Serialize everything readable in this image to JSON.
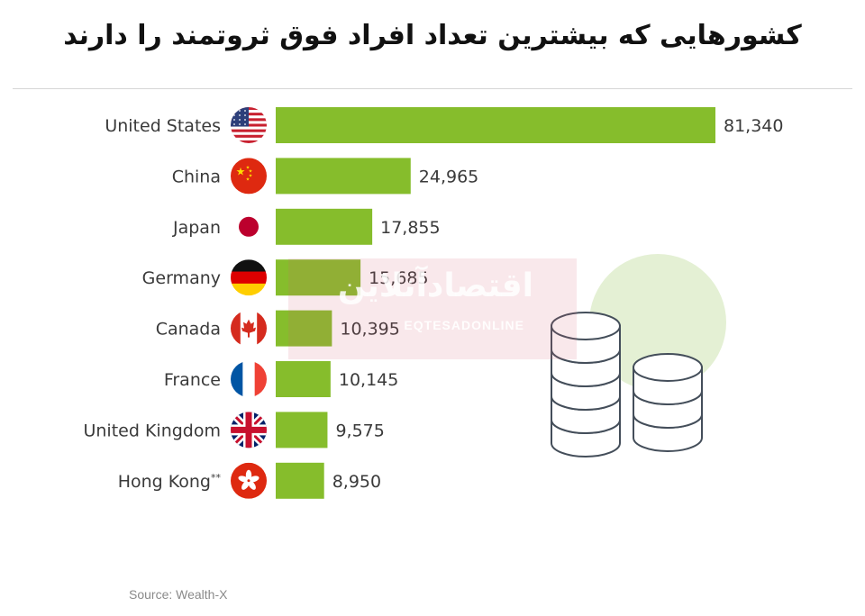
{
  "header": {
    "title": "کشورهایی که بیشترین تعداد افراد فوق ثروتمند را دارند"
  },
  "chart_data": {
    "type": "bar",
    "orientation": "horizontal",
    "categories": [
      "United States",
      "China",
      "Japan",
      "Germany",
      "Canada",
      "France",
      "United Kingdom",
      "Hong Kong"
    ],
    "category_suffixes": [
      "",
      "",
      "",
      "",
      "",
      "",
      "",
      "**"
    ],
    "values": [
      81340,
      24965,
      17855,
      15685,
      10395,
      10145,
      9575,
      8950
    ],
    "value_labels": [
      "81,340",
      "24,965",
      "17,855",
      "15,685",
      "10,395",
      "10,145",
      "9,575",
      "8,950"
    ],
    "flags": [
      "us-flag-icon",
      "cn-flag-icon",
      "jp-flag-icon",
      "de-flag-icon",
      "ca-flag-icon",
      "fr-flag-icon",
      "gb-flag-icon",
      "hk-flag-icon"
    ],
    "bar_color": "#86bd2c",
    "xlim": [
      0,
      81340
    ],
    "grid": false,
    "legend": "none"
  },
  "footer": {
    "source": "Source: Wealth-X"
  },
  "watermark": {
    "text_fa": "اقتصادآنلاین",
    "text_en": "EQTESADONLINE"
  },
  "decoration": {
    "icon": "coin-stacks-icon",
    "circle_color": "#e4f0d4",
    "line_color": "#444e5a"
  }
}
